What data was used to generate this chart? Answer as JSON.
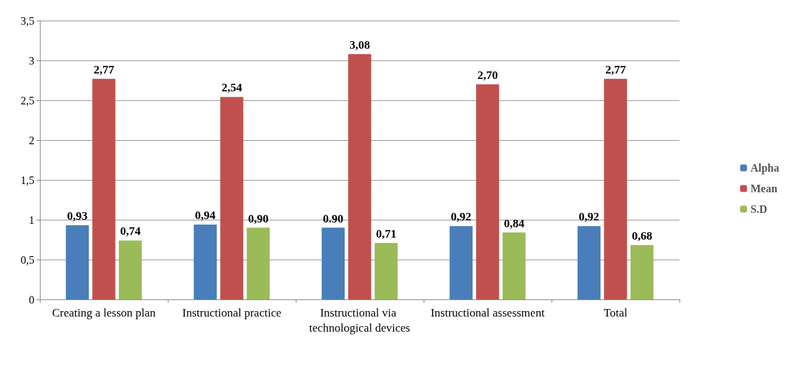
{
  "chart_data": {
    "type": "bar",
    "categories": [
      "Creating a lesson plan",
      "Instructional practice",
      "Instructional via technological devices",
      "Instructional assessment",
      "Total"
    ],
    "series": [
      {
        "name": "Alpha",
        "color": "#4a7ebb",
        "values": [
          0.93,
          0.94,
          0.9,
          0.92,
          0.92
        ],
        "value_labels": [
          "0,93",
          "0,94",
          "0.90",
          "0,92",
          "0,92"
        ]
      },
      {
        "name": "Mean",
        "color": "#c0504d",
        "values": [
          2.77,
          2.54,
          3.08,
          2.7,
          2.77
        ],
        "value_labels": [
          "2,77",
          "2,54",
          "3,08",
          "2,70",
          "2,77"
        ]
      },
      {
        "name": "S.D",
        "color": "#9bbb59",
        "values": [
          0.74,
          0.9,
          0.71,
          0.84,
          0.68
        ],
        "value_labels": [
          "0,74",
          "0,90",
          "0,71",
          "0,84",
          "0,68"
        ]
      }
    ],
    "ylim": [
      0,
      3.5
    ],
    "yticks": [
      {
        "value": 0,
        "label": "0"
      },
      {
        "value": 0.5,
        "label": "0,5"
      },
      {
        "value": 1,
        "label": "1"
      },
      {
        "value": 1.5,
        "label": "1,5"
      },
      {
        "value": 2,
        "label": "2"
      },
      {
        "value": 2.5,
        "label": "2,5"
      },
      {
        "value": 3,
        "label": "3"
      },
      {
        "value": 3.5,
        "label": "3,5"
      }
    ],
    "grid": "y",
    "legend": "right"
  }
}
